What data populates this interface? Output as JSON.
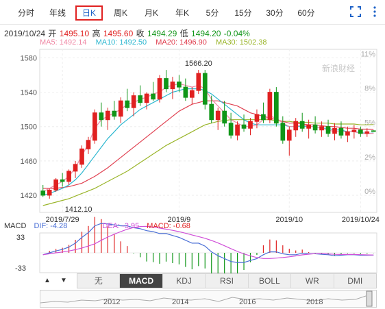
{
  "tabs": [
    {
      "label": "分时",
      "active": false
    },
    {
      "label": "年线",
      "active": false
    },
    {
      "label": "日K",
      "active": true
    },
    {
      "label": "周K",
      "active": false
    },
    {
      "label": "月K",
      "active": false
    },
    {
      "label": "年K",
      "active": false
    },
    {
      "label": "5分",
      "active": false
    },
    {
      "label": "15分",
      "active": false
    },
    {
      "label": "30分",
      "active": false
    },
    {
      "label": "60分",
      "active": false
    }
  ],
  "toolbar_icons": [
    "fullscreen-icon",
    "more-menu-icon"
  ],
  "quote": {
    "date": "2019/10/24",
    "open_label": "开",
    "open": "1495.10",
    "high_label": "高",
    "high": "1495.60",
    "close_label": "收",
    "close": "1494.29",
    "low_label": "低",
    "low": "1494.20",
    "change": "-0.04%"
  },
  "ma": {
    "ma5": "MA5: 1492.14",
    "ma10": "MA10: 1492.50",
    "ma20": "MA20: 1496.90",
    "ma30": "MA30: 1502.38"
  },
  "colors": {
    "up": "#e02020",
    "down": "#109618",
    "ma5": "#f08aa6",
    "ma10": "#2cb7d0",
    "ma20": "#e04050",
    "ma30": "#9ab52a",
    "dif": "#4a6fd6",
    "dea": "#d04fd8"
  },
  "chart_data": {
    "type": "candlestick",
    "y_ticks": [
      "1580",
      "1540",
      "1500",
      "1460",
      "1420"
    ],
    "y_ticks_right": [
      "11%",
      "8%",
      "5%",
      "2%",
      "0%"
    ],
    "ylim": [
      1400,
      1590
    ],
    "x_labels": [
      "2019/7/29",
      "2019/9",
      "2019/10",
      "2019/10/24"
    ],
    "annotations": {
      "high": "1566.20",
      "low": "1412.10"
    },
    "watermark": "新浪财经",
    "candles": [
      [
        1425,
        1432,
        1418,
        1420
      ],
      [
        1420,
        1428,
        1416,
        1426
      ],
      [
        1426,
        1440,
        1424,
        1438
      ],
      [
        1438,
        1446,
        1430,
        1436
      ],
      [
        1436,
        1450,
        1432,
        1448
      ],
      [
        1448,
        1460,
        1440,
        1456
      ],
      [
        1456,
        1478,
        1452,
        1474
      ],
      [
        1474,
        1488,
        1468,
        1484
      ],
      [
        1484,
        1520,
        1480,
        1516
      ],
      [
        1516,
        1528,
        1500,
        1508
      ],
      [
        1508,
        1522,
        1496,
        1518
      ],
      [
        1518,
        1530,
        1508,
        1512
      ],
      [
        1512,
        1534,
        1504,
        1530
      ],
      [
        1530,
        1544,
        1518,
        1522
      ],
      [
        1522,
        1540,
        1512,
        1536
      ],
      [
        1536,
        1548,
        1524,
        1528
      ],
      [
        1528,
        1540,
        1520,
        1538
      ],
      [
        1538,
        1552,
        1530,
        1532
      ],
      [
        1532,
        1560,
        1528,
        1556
      ],
      [
        1556,
        1566,
        1540,
        1544
      ],
      [
        1544,
        1558,
        1532,
        1552
      ],
      [
        1552,
        1560,
        1540,
        1546
      ],
      [
        1546,
        1556,
        1530,
        1534
      ],
      [
        1534,
        1546,
        1526,
        1542
      ],
      [
        1542,
        1566,
        1538,
        1562
      ],
      [
        1562,
        1566,
        1520,
        1526
      ],
      [
        1526,
        1536,
        1504,
        1508
      ],
      [
        1508,
        1522,
        1496,
        1518
      ],
      [
        1518,
        1530,
        1500,
        1504
      ],
      [
        1504,
        1516,
        1486,
        1490
      ],
      [
        1490,
        1506,
        1484,
        1502
      ],
      [
        1502,
        1514,
        1494,
        1498
      ],
      [
        1498,
        1510,
        1490,
        1506
      ],
      [
        1506,
        1520,
        1498,
        1514
      ],
      [
        1514,
        1528,
        1504,
        1508
      ],
      [
        1508,
        1544,
        1504,
        1540
      ],
      [
        1540,
        1546,
        1500,
        1504
      ],
      [
        1504,
        1512,
        1480,
        1484
      ],
      [
        1484,
        1500,
        1466,
        1496
      ],
      [
        1496,
        1510,
        1488,
        1506
      ],
      [
        1506,
        1516,
        1494,
        1498
      ],
      [
        1498,
        1508,
        1486,
        1502
      ],
      [
        1502,
        1512,
        1492,
        1496
      ],
      [
        1496,
        1506,
        1488,
        1500
      ],
      [
        1500,
        1508,
        1488,
        1492
      ],
      [
        1492,
        1504,
        1484,
        1498
      ],
      [
        1498,
        1506,
        1486,
        1490
      ],
      [
        1490,
        1500,
        1482,
        1494
      ],
      [
        1494,
        1502,
        1486,
        1496
      ],
      [
        1496,
        1500,
        1488,
        1492
      ],
      [
        1492,
        1498,
        1488,
        1494
      ],
      [
        1495.1,
        1495.6,
        1494.2,
        1494.29
      ]
    ],
    "ma5": [
      1424,
      1428,
      1432,
      1436,
      1442,
      1452,
      1466,
      1480,
      1498,
      1508,
      1512,
      1516,
      1520,
      1526,
      1528,
      1532,
      1534,
      1538,
      1540,
      1546,
      1548,
      1550,
      1548,
      1546,
      1548,
      1544,
      1532,
      1524,
      1516,
      1508,
      1504,
      1500,
      1500,
      1502,
      1508,
      1512,
      1510,
      1504,
      1500,
      1500,
      1502,
      1500,
      1500,
      1498,
      1496,
      1494,
      1494,
      1494,
      1494,
      1492,
      1492,
      1492.14
    ],
    "ma10": [
      1420,
      1422,
      1425,
      1428,
      1432,
      1438,
      1446,
      1456,
      1466,
      1476,
      1486,
      1494,
      1502,
      1508,
      1514,
      1520,
      1524,
      1528,
      1532,
      1536,
      1540,
      1542,
      1544,
      1544,
      1544,
      1542,
      1538,
      1532,
      1526,
      1520,
      1514,
      1508,
      1504,
      1502,
      1502,
      1502,
      1502,
      1502,
      1500,
      1500,
      1500,
      1500,
      1500,
      1498,
      1498,
      1496,
      1496,
      1494,
      1494,
      1493,
      1492,
      1492.5
    ],
    "ma20": [
      1428,
      1428,
      1428,
      1429,
      1430,
      1432,
      1434,
      1438,
      1442,
      1447,
      1452,
      1458,
      1464,
      1470,
      1476,
      1482,
      1488,
      1494,
      1500,
      1506,
      1512,
      1518,
      1522,
      1526,
      1528,
      1530,
      1530,
      1530,
      1528,
      1526,
      1524,
      1520,
      1516,
      1514,
      1512,
      1510,
      1508,
      1506,
      1504,
      1504,
      1503,
      1502,
      1502,
      1501,
      1500,
      1500,
      1499,
      1498,
      1498,
      1497,
      1497,
      1496.9
    ],
    "ma30": [
      1408,
      1410,
      1412,
      1414,
      1416,
      1419,
      1422,
      1425,
      1428,
      1432,
      1436,
      1440,
      1444,
      1448,
      1453,
      1458,
      1463,
      1468,
      1473,
      1478,
      1482,
      1486,
      1490,
      1494,
      1498,
      1502,
      1504,
      1506,
      1507,
      1508,
      1508,
      1508,
      1508,
      1508,
      1508,
      1508,
      1507,
      1506,
      1506,
      1505,
      1505,
      1505,
      1504,
      1504,
      1504,
      1503,
      1503,
      1503,
      1503,
      1502,
      1502,
      1502.38
    ]
  },
  "macd": {
    "label": "MACD",
    "dif": "DIF: -4.28",
    "dea": "DEA: -3.95",
    "macd": "MACD: -0.68",
    "y_top": "33",
    "y_bottom": "-33"
  },
  "indicator_tabs": [
    {
      "label": "无",
      "active": false
    },
    {
      "label": "MACD",
      "active": true
    },
    {
      "label": "KDJ",
      "active": false
    },
    {
      "label": "RSI",
      "active": false
    },
    {
      "label": "BOLL",
      "active": false
    },
    {
      "label": "WR",
      "active": false
    },
    {
      "label": "DMI",
      "active": false
    }
  ],
  "nav_arrows": [
    "▲",
    "▼"
  ],
  "overview_years": [
    "2012",
    "2014",
    "2016",
    "2018"
  ]
}
